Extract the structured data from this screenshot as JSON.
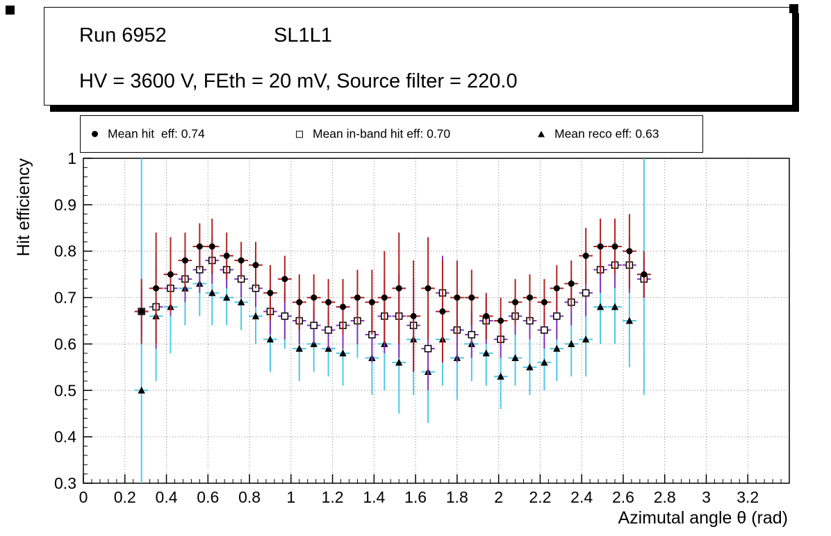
{
  "title_box": {
    "run": "Run 6952",
    "chamber": "SL1L1",
    "conditions": "HV = 3600 V, FEth = 20 mV, Source filter = 220.0"
  },
  "legend": {
    "entries": [
      {
        "label": "Mean hit  eff: 0.74",
        "marker": "filled-circle"
      },
      {
        "label": "Mean in-band hit eff: 0.70",
        "marker": "open-square"
      },
      {
        "label": "Mean reco eff: 0.63",
        "marker": "filled-triangle"
      }
    ]
  },
  "chart_data": {
    "type": "scatter",
    "title": "",
    "xlabel": "Azimutal angle θ (rad)",
    "ylabel": "Hit efficiency",
    "xlim": [
      0,
      3.4
    ],
    "ylim": [
      0.3,
      1.0
    ],
    "grid": "dotted",
    "grid_color": "#808080",
    "x_tick_values": [
      0,
      0.2,
      0.4,
      0.6,
      0.8,
      1,
      1.2,
      1.4,
      1.6,
      1.8,
      2,
      2.2,
      2.4,
      2.6,
      2.8,
      3,
      3.2
    ],
    "x_tick_labels": [
      "0",
      "0.2",
      "0.4",
      "0.6",
      "0.8",
      "1",
      "1.2",
      "1.4",
      "1.6",
      "1.8",
      "2",
      "2.2",
      "2.4",
      "2.6",
      "2.8",
      "3",
      "3.2"
    ],
    "y_tick_values": [
      0.3,
      0.4,
      0.5,
      0.6,
      0.7,
      0.8,
      0.9,
      1
    ],
    "y_tick_labels": [
      "0.3",
      "0.4",
      "0.5",
      "0.6",
      "0.7",
      "0.8",
      "0.9",
      "1"
    ],
    "x_halfwidth": 0.033,
    "x": [
      0.28,
      0.35,
      0.42,
      0.49,
      0.56,
      0.62,
      0.69,
      0.76,
      0.83,
      0.9,
      0.97,
      1.04,
      1.11,
      1.18,
      1.25,
      1.32,
      1.39,
      1.45,
      1.52,
      1.59,
      1.66,
      1.73,
      1.8,
      1.87,
      1.94,
      2.01,
      2.08,
      2.15,
      2.22,
      2.28,
      2.35,
      2.42,
      2.49,
      2.56,
      2.63,
      2.7
    ],
    "series": [
      {
        "id": "mean-hit-eff",
        "name": "Mean hit eff",
        "mean": 0.74,
        "marker": "filled-circle",
        "marker_color": "#000000",
        "error_color": "#b22222",
        "y": [
          0.67,
          0.72,
          0.75,
          0.78,
          0.81,
          0.81,
          0.79,
          0.78,
          0.77,
          0.71,
          0.74,
          0.69,
          0.7,
          0.69,
          0.68,
          0.7,
          0.69,
          0.7,
          0.72,
          0.66,
          0.72,
          0.67,
          0.7,
          0.7,
          0.66,
          0.65,
          0.69,
          0.7,
          0.69,
          0.72,
          0.73,
          0.79,
          0.81,
          0.81,
          0.8,
          0.75
        ],
        "yerr": [
          0.07,
          0.12,
          0.08,
          0.06,
          0.05,
          0.06,
          0.05,
          0.04,
          0.05,
          0.06,
          0.05,
          0.06,
          0.05,
          0.05,
          0.06,
          0.06,
          0.07,
          0.1,
          0.12,
          0.12,
          0.11,
          0.11,
          0.08,
          0.06,
          0.05,
          0.05,
          0.05,
          0.05,
          0.05,
          0.05,
          0.05,
          0.06,
          0.06,
          0.06,
          0.08,
          0.05
        ]
      },
      {
        "id": "mean-inband-hit-eff",
        "name": "Mean in-band hit eff",
        "mean": 0.7,
        "marker": "open-square",
        "marker_color": "#000000",
        "error_color": "#8833bb",
        "y": [
          0.67,
          0.68,
          0.72,
          0.74,
          0.76,
          0.78,
          0.76,
          0.74,
          0.72,
          0.67,
          0.66,
          0.65,
          0.64,
          0.63,
          0.64,
          0.65,
          0.62,
          0.66,
          0.66,
          0.64,
          0.59,
          0.71,
          0.63,
          0.62,
          0.65,
          0.61,
          0.66,
          0.65,
          0.63,
          0.66,
          0.69,
          0.71,
          0.76,
          0.77,
          0.77,
          0.74
        ],
        "yerr": [
          0.05,
          0.09,
          0.06,
          0.05,
          0.05,
          0.05,
          0.04,
          0.04,
          0.04,
          0.05,
          0.05,
          0.05,
          0.04,
          0.04,
          0.05,
          0.05,
          0.06,
          0.08,
          0.09,
          0.1,
          0.09,
          0.08,
          0.07,
          0.05,
          0.05,
          0.04,
          0.04,
          0.04,
          0.04,
          0.05,
          0.05,
          0.05,
          0.05,
          0.05,
          0.06,
          0.04
        ]
      },
      {
        "id": "mean-reco-eff",
        "name": "Mean reco eff",
        "mean": 0.63,
        "marker": "filled-triangle",
        "marker_color": "#000000",
        "error_color": "#4cc8e8",
        "y": [
          0.5,
          0.66,
          0.68,
          0.72,
          0.73,
          0.71,
          0.7,
          0.69,
          0.66,
          0.61,
          0.66,
          0.59,
          0.6,
          0.59,
          0.58,
          0.65,
          0.57,
          0.6,
          0.56,
          0.61,
          0.54,
          0.61,
          0.57,
          0.6,
          0.58,
          0.53,
          0.57,
          0.55,
          0.56,
          0.59,
          0.6,
          0.61,
          0.68,
          0.68,
          0.65,
          0.75
        ],
        "yerr": [
          0.5,
          0.14,
          0.1,
          0.08,
          0.07,
          0.07,
          0.06,
          0.06,
          0.06,
          0.07,
          0.07,
          0.07,
          0.06,
          0.06,
          0.07,
          0.08,
          0.08,
          0.1,
          0.11,
          0.12,
          0.11,
          0.1,
          0.09,
          0.08,
          0.07,
          0.07,
          0.06,
          0.06,
          0.06,
          0.07,
          0.07,
          0.08,
          0.08,
          0.08,
          0.1,
          0.26
        ]
      }
    ]
  }
}
